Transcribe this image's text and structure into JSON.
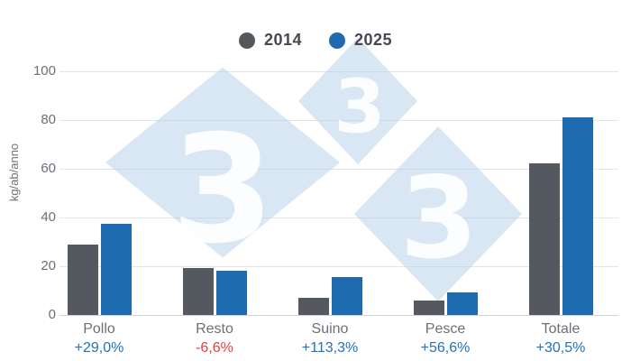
{
  "legend": {
    "items": [
      {
        "label": "2014",
        "color": "#55595e"
      },
      {
        "label": "2025",
        "color": "#2069ae"
      }
    ]
  },
  "watermark": {
    "text": "3"
  },
  "chart_data": {
    "type": "bar",
    "title": "",
    "xlabel": "",
    "ylabel": "kg/ab/anno",
    "ylim": [
      0,
      100
    ],
    "ytick_step": 20,
    "grid": true,
    "legend_position": "top",
    "categories": [
      "Pollo",
      "Resto",
      "Suino",
      "Pesce",
      "Totale"
    ],
    "series": [
      {
        "name": "2014",
        "color": "#54585f",
        "values": [
          29,
          19.4,
          7.2,
          6,
          62.3
        ]
      },
      {
        "name": "2025",
        "color": "#1f6bb0",
        "values": [
          37.4,
          18.1,
          15.4,
          9.4,
          81.3
        ]
      }
    ],
    "change_labels": [
      {
        "text": "+29,0%",
        "color": "#2372bc"
      },
      {
        "text": "-6,6%",
        "color": "#ed3c42"
      },
      {
        "text": "+113,3%",
        "color": "#2372bc"
      },
      {
        "text": "+56,6%",
        "color": "#2372bc"
      },
      {
        "text": "+30,5%",
        "color": "#2372bc"
      }
    ]
  }
}
